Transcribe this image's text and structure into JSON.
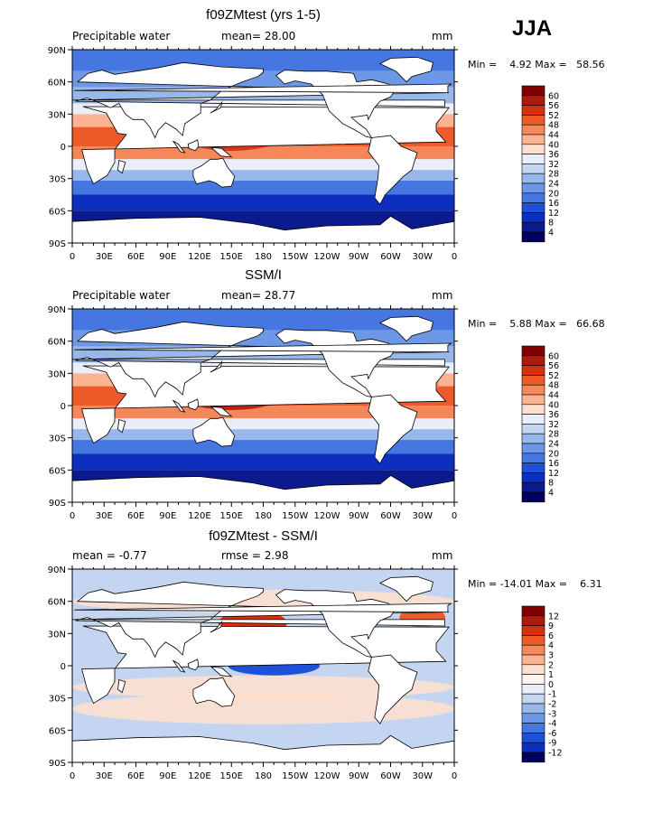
{
  "season": "JJA",
  "panels": [
    {
      "title": "f09ZMtest (yrs 1-5)",
      "left_label": "Precipitable water",
      "center_label": "mean=   28.00",
      "units": "mm",
      "stats": "Min =    4.92 Max =   58.56",
      "levels": [
        "60",
        "56",
        "52",
        "48",
        "44",
        "40",
        "36",
        "32",
        "28",
        "24",
        "20",
        "16",
        "12",
        "8",
        "4"
      ]
    },
    {
      "title": "SSM/I",
      "left_label": "Precipitable water",
      "center_label": "mean=   28.77",
      "units": "mm",
      "stats": "Min =    5.88 Max =   66.68",
      "levels": [
        "60",
        "56",
        "52",
        "48",
        "44",
        "40",
        "36",
        "32",
        "28",
        "24",
        "20",
        "16",
        "12",
        "8",
        "4"
      ]
    },
    {
      "title": "f09ZMtest - SSM/I",
      "left_label": "mean =   -0.77",
      "center_label": "rmse =    2.98",
      "units": "mm",
      "stats": "Min = -14.01 Max =    6.31",
      "levels": [
        "12",
        "9",
        "6",
        "4",
        "3",
        "2",
        "1",
        "0",
        "-1",
        "-2",
        "-3",
        "-4",
        "-6",
        "-9",
        "-12"
      ]
    }
  ],
  "lat_labels": [
    "90N",
    "60N",
    "30N",
    "0",
    "30S",
    "60S",
    "90S"
  ],
  "lon_labels": [
    "0",
    "30E",
    "60E",
    "90E",
    "120E",
    "150E",
    "180",
    "150W",
    "120W",
    "90W",
    "60W",
    "30W",
    "0"
  ],
  "colors": {
    "abs_scale": [
      "#7f0000",
      "#b2180c",
      "#d6300f",
      "#ee5a2a",
      "#f6875a",
      "#fbb392",
      "#fde0cf",
      "#e9eef8",
      "#c3d5f0",
      "#98b7ea",
      "#6d98e6",
      "#4676e0",
      "#1f50d8",
      "#0c2fc0",
      "#0b1a8c",
      "#00005c"
    ],
    "diff_scale": [
      "#7f0000",
      "#b2180c",
      "#d6300f",
      "#ee5a2a",
      "#f6875a",
      "#fbb392",
      "#fde0cf",
      "#fff4ee",
      "#e9eef8",
      "#c3d5f0",
      "#98b7ea",
      "#6d98e6",
      "#4676e0",
      "#1f50d8",
      "#0c2fc0",
      "#00005c"
    ]
  }
}
